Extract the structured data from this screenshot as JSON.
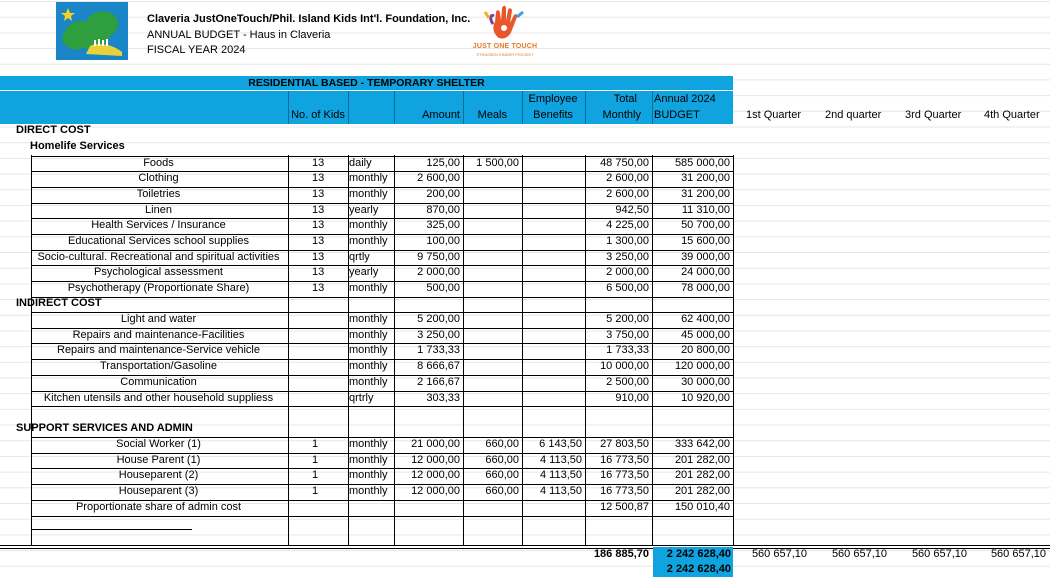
{
  "header": {
    "org_name": "Claveria JustOneTouch/Phil. Island Kids Int'l. Foundation, Inc.",
    "budget_title": "ANNUAL BUDGET - Haus in Claveria",
    "fiscal_year": "FISCAL YEAR  2024",
    "logo_text": "JUST ONE TOUCH",
    "logo_subtext": "STRASSEN KINDER PROJEKT"
  },
  "table": {
    "section_title": "RESIDENTIAL BASED - TEMPORARY SHELTER",
    "columns": {
      "no_of_kids": "No. of Kids",
      "amount": "Amount",
      "meals": "Meals",
      "employee_benefits_1": "Employee",
      "employee_benefits_2": "Benefits",
      "total_monthly_1": "Total",
      "total_monthly_2": "Monthly",
      "annual_budget_1": "Annual 2024",
      "annual_budget_2": "BUDGET",
      "q1": "1st Quarter",
      "q2": "2nd quarter",
      "q3": "3rd Quarter",
      "q4": "4th Quarter"
    },
    "groups": [
      {
        "label": "DIRECT COST",
        "sublabel": "Homelife Services"
      },
      {
        "label": "INDIRECT COST"
      },
      {
        "label": "SUPPORT SERVICES AND ADMIN"
      }
    ],
    "direct_rows": [
      {
        "item": "Foods",
        "kids": "13",
        "freq": "daily",
        "amount": "125,00",
        "meals": "1 500,00",
        "benefits": "",
        "monthly": "48 750,00",
        "annual": "585 000,00"
      },
      {
        "item": "Clothing",
        "kids": "13",
        "freq": "monthly",
        "amount": "2 600,00",
        "meals": "",
        "benefits": "",
        "monthly": "2 600,00",
        "annual": "31 200,00"
      },
      {
        "item": "Toiletries",
        "kids": "13",
        "freq": "monthly",
        "amount": "200,00",
        "meals": "",
        "benefits": "",
        "monthly": "2 600,00",
        "annual": "31 200,00"
      },
      {
        "item": "Linen",
        "kids": "13",
        "freq": "yearly",
        "amount": "870,00",
        "meals": "",
        "benefits": "",
        "monthly": "942,50",
        "annual": "11 310,00"
      },
      {
        "item": "Health Services / Insurance",
        "kids": "13",
        "freq": "monthly",
        "amount": "325,00",
        "meals": "",
        "benefits": "",
        "monthly": "4 225,00",
        "annual": "50 700,00"
      },
      {
        "item": "Educational Services  school supplies",
        "kids": "13",
        "freq": "monthly",
        "amount": "100,00",
        "meals": "",
        "benefits": "",
        "monthly": "1 300,00",
        "annual": "15 600,00"
      },
      {
        "item": "Socio-cultural. Recreational and spiritual activities",
        "kids": "13",
        "freq": "qrtly",
        "amount": "9 750,00",
        "meals": "",
        "benefits": "",
        "monthly": "3 250,00",
        "annual": "39 000,00"
      },
      {
        "item": "Psychological assessment",
        "kids": "13",
        "freq": "yearly",
        "amount": "2 000,00",
        "meals": "",
        "benefits": "",
        "monthly": "2 000,00",
        "annual": "24 000,00"
      },
      {
        "item": "Psychotherapy (Proportionate Share)",
        "kids": "13",
        "freq": "monthly",
        "amount": "500,00",
        "meals": "",
        "benefits": "",
        "monthly": "6 500,00",
        "annual": "78 000,00"
      }
    ],
    "indirect_rows": [
      {
        "item": "Light and water",
        "kids": "",
        "freq": "monthly",
        "amount": "5 200,00",
        "meals": "",
        "benefits": "",
        "monthly": "5 200,00",
        "annual": "62 400,00"
      },
      {
        "item": "Repairs and maintenance-Facilities",
        "kids": "",
        "freq": "monthly",
        "amount": "3 250,00",
        "meals": "",
        "benefits": "",
        "monthly": "3 750,00",
        "annual": "45 000,00"
      },
      {
        "item": "Repairs and maintenance-Service vehicle",
        "kids": "",
        "freq": "monthly",
        "amount": "1 733,33",
        "meals": "",
        "benefits": "",
        "monthly": "1 733,33",
        "annual": "20 800,00"
      },
      {
        "item": "Transportation/Gasoline",
        "kids": "",
        "freq": "monthly",
        "amount": "8 666,67",
        "meals": "",
        "benefits": "",
        "monthly": "10 000,00",
        "annual": "120 000,00"
      },
      {
        "item": "Communication",
        "kids": "",
        "freq": "monthly",
        "amount": "2 166,67",
        "meals": "",
        "benefits": "",
        "monthly": "2 500,00",
        "annual": "30 000,00"
      },
      {
        "item": "Kitchen utensils and other household suppliess",
        "kids": "",
        "freq": "qrtrly",
        "amount": "303,33",
        "meals": "",
        "benefits": "",
        "monthly": "910,00",
        "annual": "10 920,00"
      }
    ],
    "support_rows": [
      {
        "item": "Social Worker (1)",
        "kids": "1",
        "freq": "monthly",
        "amount": "21 000,00",
        "meals": "660,00",
        "benefits": "6 143,50",
        "monthly": "27 803,50",
        "annual": "333 642,00"
      },
      {
        "item": "House Parent (1)",
        "kids": "1",
        "freq": "monthly",
        "amount": "12 000,00",
        "meals": "660,00",
        "benefits": "4 113,50",
        "monthly": "16 773,50",
        "annual": "201 282,00"
      },
      {
        "item": "Houseparent (2)",
        "kids": "1",
        "freq": "monthly",
        "amount": "12 000,00",
        "meals": "660,00",
        "benefits": "4 113,50",
        "monthly": "16 773,50",
        "annual": "201 282,00"
      },
      {
        "item": "Houseparent (3)",
        "kids": "1",
        "freq": "monthly",
        "amount": "12 000,00",
        "meals": "660,00",
        "benefits": "4 113,50",
        "monthly": "16 773,50",
        "annual": "201 282,00"
      },
      {
        "item": "Proportionate share of admin cost",
        "kids": "",
        "freq": "",
        "amount": "",
        "meals": "",
        "benefits": "",
        "monthly": "12 500,87",
        "annual": "150 010,40"
      }
    ],
    "totals": {
      "monthly": "186 885,70",
      "annual": "2 242 628,40",
      "q1": "560 657,10",
      "q2": "560 657,10",
      "q3": "560 657,10",
      "q4": "560 657,10",
      "annual_repeat": "2 242 628,40"
    }
  }
}
